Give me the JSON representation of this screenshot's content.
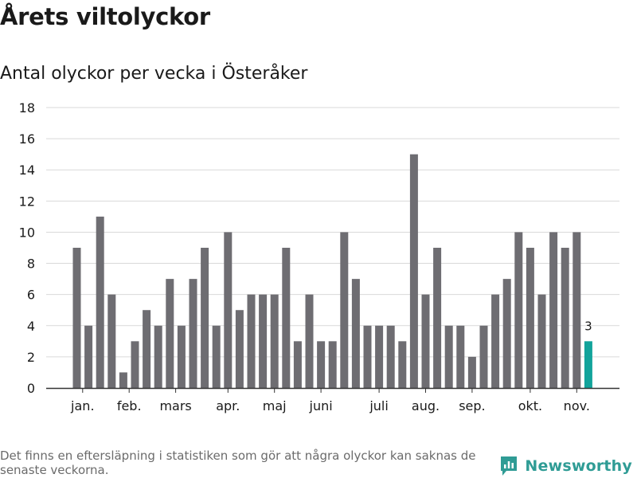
{
  "header": {
    "title": "Årets viltolyckor",
    "subtitle": "Antal olyckor per vecka i Österåker"
  },
  "footer": {
    "note": "Det finns en eftersläpning i statistiken som gör att några olyckor kan saknas de senaste veckorna.",
    "brand": "Newsworthy",
    "brand_icon": "newsworthy-logo-icon"
  },
  "colors": {
    "bar": "#6e6d72",
    "highlight": "#12a39b",
    "grid": "#d9d9d9",
    "axis": "#333333",
    "brand": "#2f9c95"
  },
  "chart_data": {
    "type": "bar",
    "title": "Antal olyckor per vecka i Österåker",
    "xlabel": "",
    "ylabel": "",
    "ylim": [
      0,
      18
    ],
    "yticks": [
      0,
      2,
      4,
      6,
      8,
      10,
      12,
      14,
      16,
      18
    ],
    "grid": true,
    "values": [
      9,
      4,
      11,
      6,
      1,
      3,
      5,
      4,
      7,
      4,
      7,
      9,
      4,
      10,
      5,
      6,
      6,
      6,
      9,
      3,
      6,
      3,
      3,
      10,
      7,
      4,
      4,
      4,
      3,
      15,
      6,
      9,
      4,
      4,
      2,
      4,
      6,
      7,
      10,
      9,
      6,
      10,
      9,
      10,
      3
    ],
    "highlight_index": 44,
    "highlight_label": "3",
    "month_ticks": [
      {
        "label": "jan.",
        "index": 0.5
      },
      {
        "label": "feb.",
        "index": 4.5
      },
      {
        "label": "mars",
        "index": 8.5
      },
      {
        "label": "apr.",
        "index": 13
      },
      {
        "label": "maj",
        "index": 17
      },
      {
        "label": "juni",
        "index": 21
      },
      {
        "label": "juli",
        "index": 26
      },
      {
        "label": "aug.",
        "index": 30
      },
      {
        "label": "sep.",
        "index": 34
      },
      {
        "label": "okt.",
        "index": 39
      },
      {
        "label": "nov.",
        "index": 43
      }
    ]
  }
}
